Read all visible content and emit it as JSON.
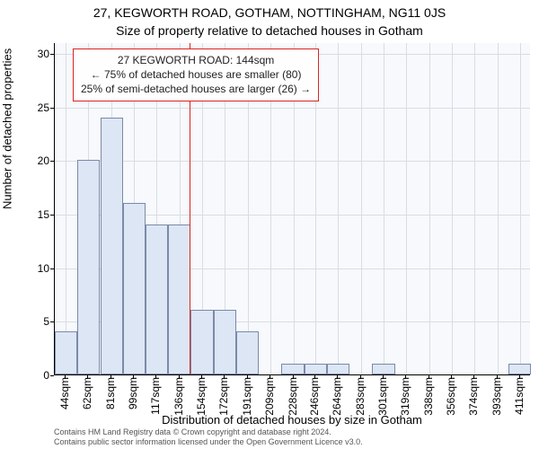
{
  "titles": {
    "line1": "27, KEGWORTH ROAD, GOTHAM, NOTTINGHAM, NG11 0JS",
    "line2": "Size of property relative to detached houses in Gotham"
  },
  "axes": {
    "xlabel": "Distribution of detached houses by size in Gotham",
    "ylabel": "Number of detached properties"
  },
  "footer": {
    "line1": "Contains HM Land Registry data © Crown copyright and database right 2024.",
    "line2": "Contains public sector information licensed under the Open Government Licence v3.0."
  },
  "chart": {
    "type": "histogram",
    "background_color": "#f7f9fc",
    "grid_color": "#d9dce3",
    "bar_fill": "#dde6f4",
    "bar_stroke": "#7a8aa8",
    "axis_color": "#000000",
    "ref_color": "#d22",
    "annot_border": "#d22",
    "annot_bg": "#fefefe",
    "x_min": 35,
    "x_max": 420,
    "y_min": 0,
    "y_max": 31,
    "y_ticks": [
      0,
      5,
      10,
      15,
      20,
      25,
      30
    ],
    "x_ticks": [
      44,
      62,
      81,
      99,
      117,
      136,
      154,
      172,
      191,
      209,
      228,
      246,
      264,
      283,
      301,
      319,
      338,
      356,
      374,
      393,
      411
    ],
    "x_tick_suffix": "sqm",
    "bin_width": 18.33,
    "bins": [
      {
        "start": 35,
        "count": 4
      },
      {
        "start": 53.3,
        "count": 20
      },
      {
        "start": 71.7,
        "count": 24
      },
      {
        "start": 90,
        "count": 16
      },
      {
        "start": 108.3,
        "count": 14
      },
      {
        "start": 126.7,
        "count": 14
      },
      {
        "start": 145,
        "count": 6
      },
      {
        "start": 163.3,
        "count": 6
      },
      {
        "start": 181.7,
        "count": 4
      },
      {
        "start": 200,
        "count": 0
      },
      {
        "start": 218.3,
        "count": 1
      },
      {
        "start": 236.7,
        "count": 1
      },
      {
        "start": 255,
        "count": 1
      },
      {
        "start": 273.3,
        "count": 0
      },
      {
        "start": 291.7,
        "count": 1
      },
      {
        "start": 310,
        "count": 0
      },
      {
        "start": 328.3,
        "count": 0
      },
      {
        "start": 346.7,
        "count": 0
      },
      {
        "start": 365,
        "count": 0
      },
      {
        "start": 383.3,
        "count": 0
      },
      {
        "start": 401.7,
        "count": 1
      }
    ],
    "reference_value": 144,
    "annotation": {
      "line1": "27 KEGWORTH ROAD: 144sqm",
      "line2": "← 75% of detached houses are smaller (80)",
      "line3": "25% of semi-detached houses are larger (26) →"
    },
    "label_fontsize": 12,
    "title_fontsize": 14
  }
}
